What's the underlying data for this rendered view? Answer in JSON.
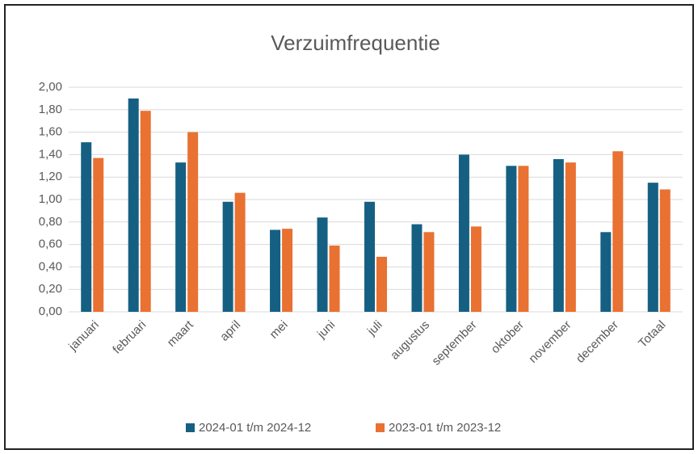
{
  "chart_data": {
    "type": "bar",
    "title": "Verzuimfrequentie",
    "categories": [
      "januari",
      "februari",
      "maart",
      "april",
      "mei",
      "juni",
      "juli",
      "augustus",
      "september",
      "oktober",
      "november",
      "december",
      "Totaal"
    ],
    "series": [
      {
        "name": "2024-01 t/m 2024-12",
        "color": "#156082",
        "values": [
          1.51,
          1.9,
          1.33,
          0.98,
          0.73,
          0.84,
          0.98,
          0.78,
          1.4,
          1.3,
          1.36,
          0.71,
          1.15
        ]
      },
      {
        "name": "2023-01 t/m 2023-12",
        "color": "#e97132",
        "values": [
          1.37,
          1.79,
          1.6,
          1.06,
          0.74,
          0.59,
          0.49,
          0.71,
          0.76,
          1.3,
          1.33,
          1.43,
          1.09
        ]
      }
    ],
    "ylim": [
      0,
      2
    ],
    "yticks": [
      {
        "value": 0,
        "label": "0,00"
      },
      {
        "value": 0.2,
        "label": "0,20"
      },
      {
        "value": 0.4,
        "label": "0,40"
      },
      {
        "value": 0.6,
        "label": "0,60"
      },
      {
        "value": 0.8,
        "label": "0,80"
      },
      {
        "value": 1,
        "label": "1,00"
      },
      {
        "value": 1.2,
        "label": "1,20"
      },
      {
        "value": 1.4,
        "label": "1,40"
      },
      {
        "value": 1.6,
        "label": "1,60"
      },
      {
        "value": 1.8,
        "label": "1,80"
      },
      {
        "value": 2,
        "label": "2,00"
      }
    ],
    "grid": true,
    "legend": "bottom"
  }
}
